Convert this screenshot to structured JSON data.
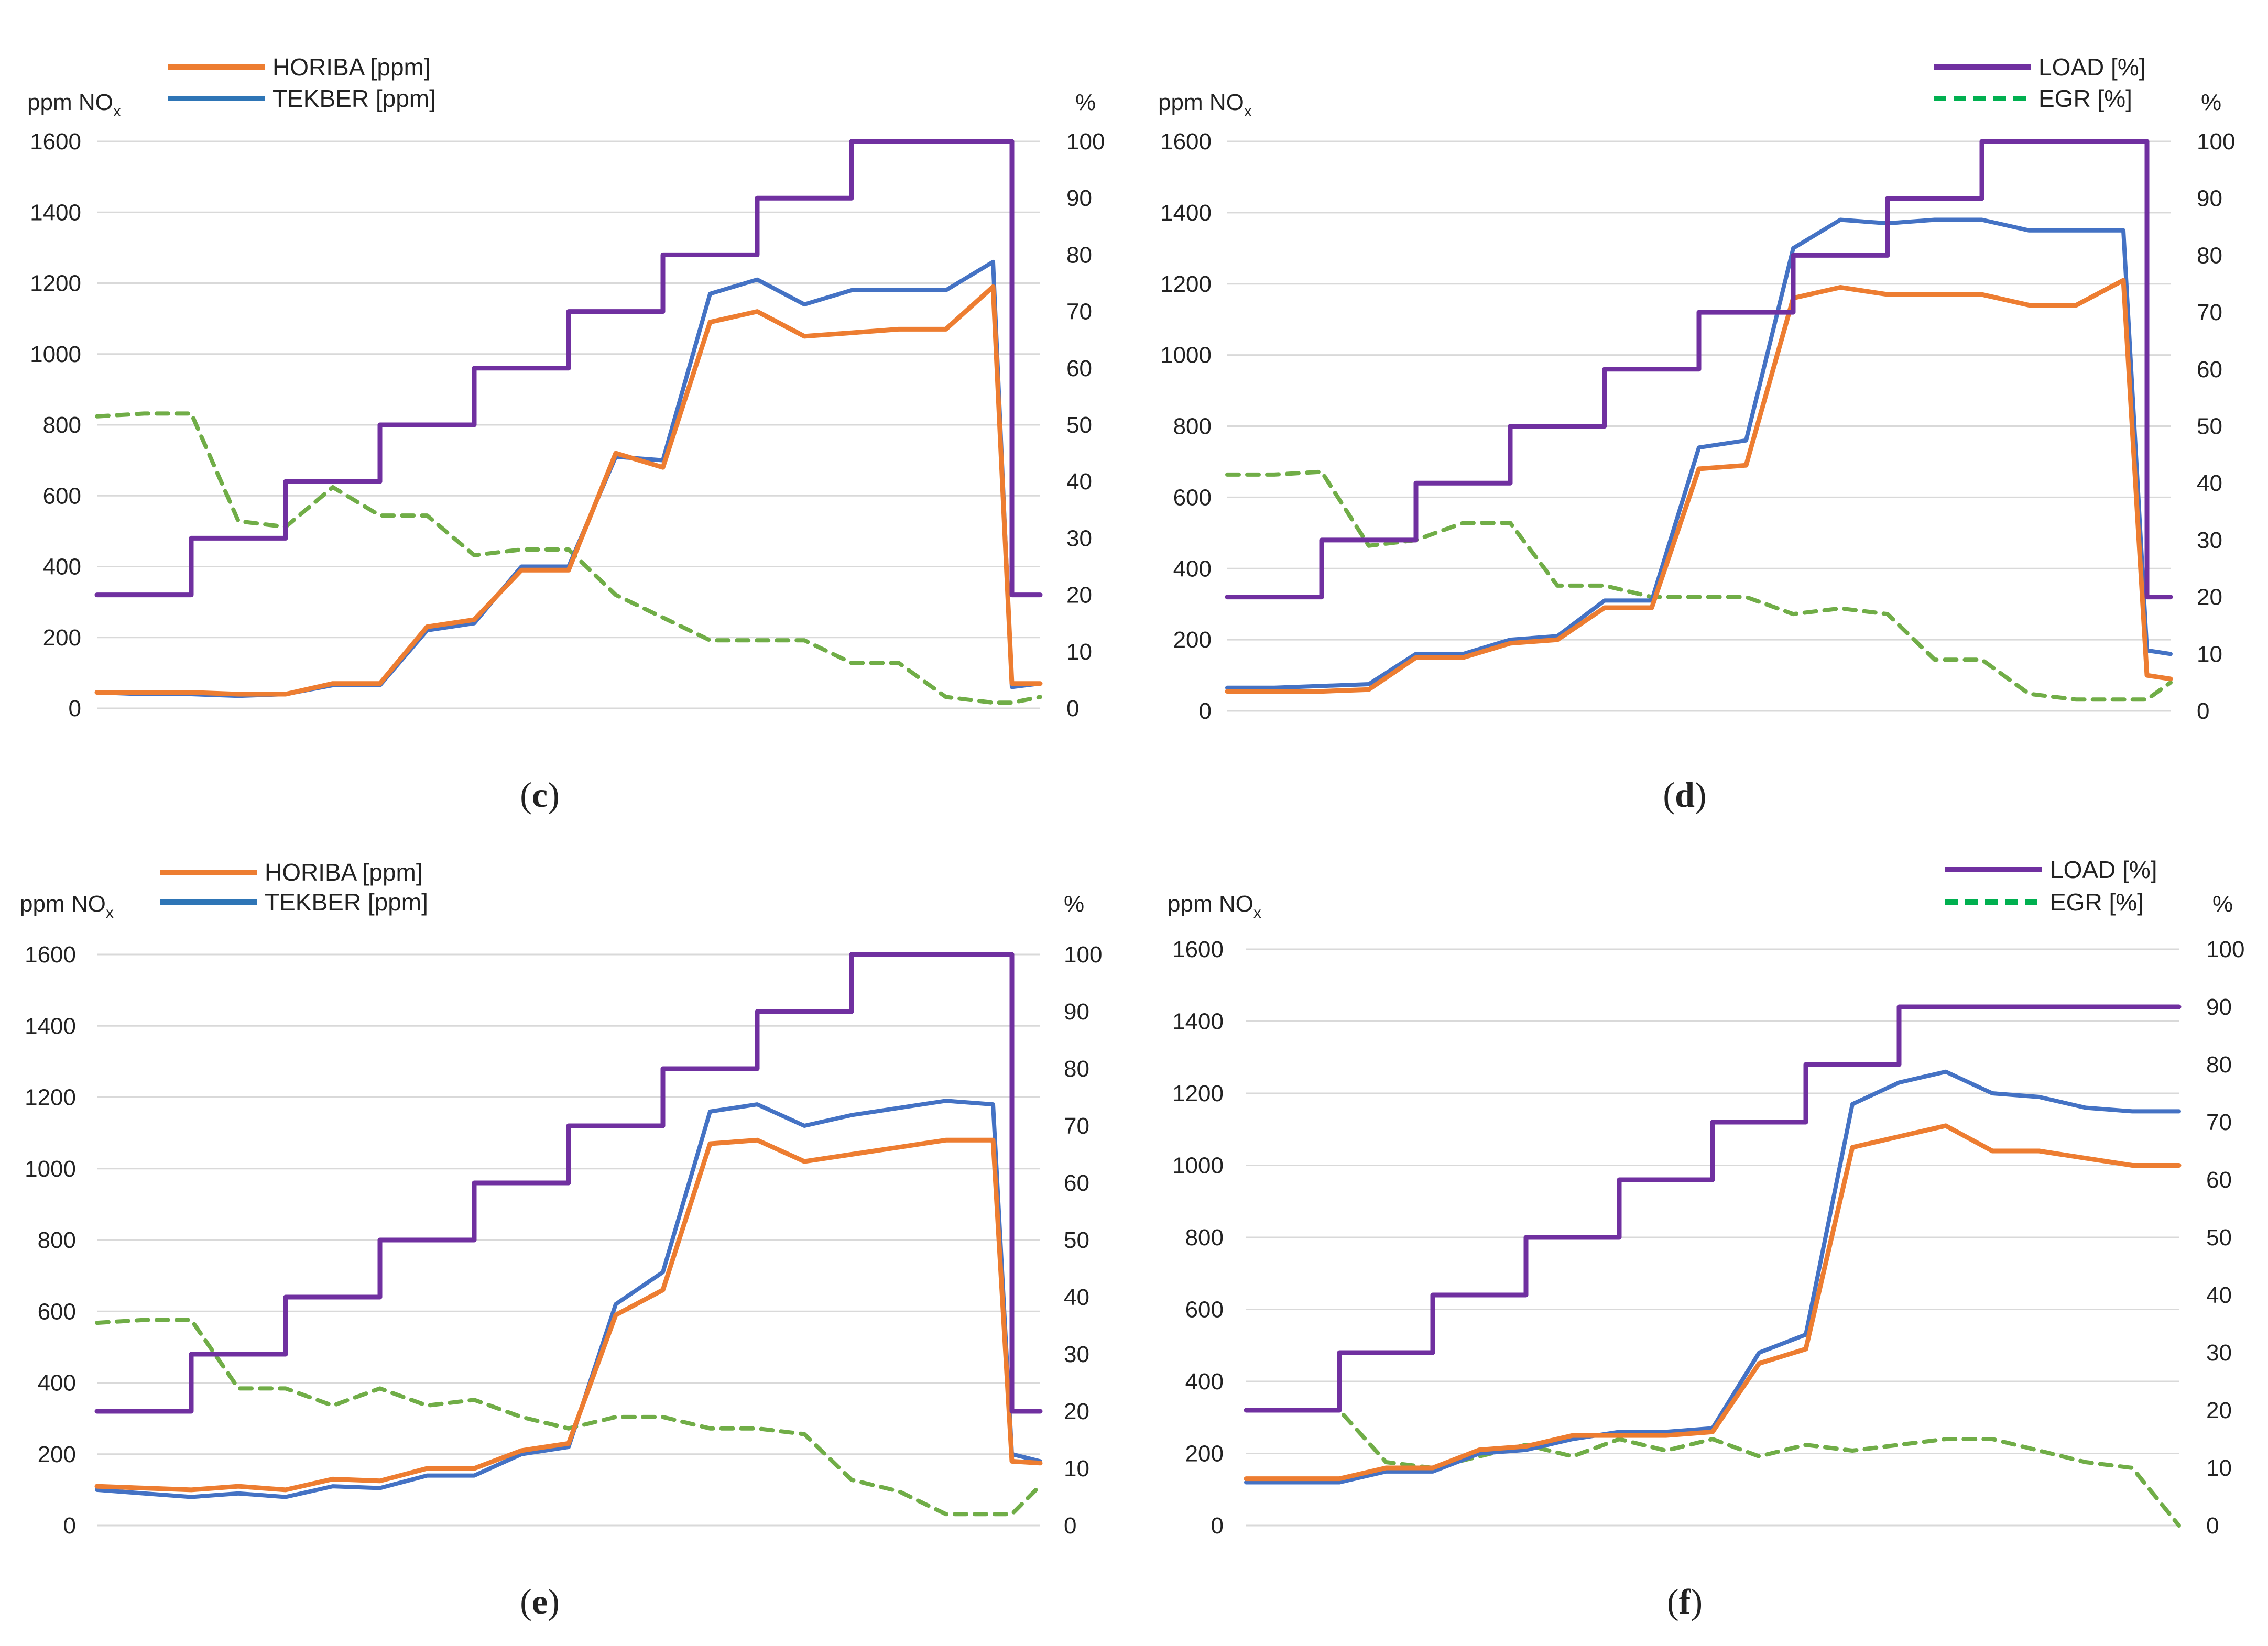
{
  "colors": {
    "horiba": "#ED7D31",
    "tekber": "#4472C4",
    "load": "#7030A0",
    "egr": "#70AD47",
    "grid": "#D9D9D9",
    "legend_horiba": "#ED7D31",
    "legend_tekber": "#2E75B6",
    "legend_load": "#7030A0",
    "legend_egr": "#00B050"
  },
  "chart_data": [
    {
      "type": "line",
      "panel_label": "c",
      "left_axis_label": "ppm NO",
      "left_axis_label_sub": "x",
      "right_axis_label": "%",
      "ylim_left": [
        0,
        1600
      ],
      "ylim_right": [
        0,
        100
      ],
      "left_ticks": [
        "0",
        "200",
        "400",
        "600",
        "800",
        "1000",
        "1200",
        "1400",
        "1600"
      ],
      "right_ticks": [
        "0",
        "10",
        "20",
        "30",
        "40",
        "50",
        "60",
        "70",
        "80",
        "90",
        "100"
      ],
      "grid": true,
      "legend": [
        {
          "label": "HORIBA [ppm]",
          "series": "horiba"
        },
        {
          "label": "TEKBER [ppm]",
          "series": "tekber"
        }
      ],
      "x": [
        0,
        0.5,
        1,
        1.5,
        2,
        2.5,
        3,
        3.5,
        4,
        4.5,
        5,
        5.5,
        6,
        6.5,
        7,
        7.5,
        8,
        8.5,
        9,
        9.5,
        9.7,
        10
      ],
      "series": {
        "horiba": [
          45,
          45,
          45,
          40,
          40,
          70,
          70,
          230,
          250,
          390,
          390,
          720,
          680,
          1090,
          1120,
          1050,
          1060,
          1070,
          1070,
          1190,
          70,
          70
        ],
        "tekber": [
          45,
          40,
          40,
          35,
          40,
          65,
          65,
          220,
          240,
          400,
          400,
          710,
          700,
          1170,
          1210,
          1140,
          1180,
          1180,
          1180,
          1260,
          60,
          70
        ],
        "load": [
          20,
          20,
          30,
          30,
          40,
          40,
          50,
          50,
          60,
          60,
          70,
          70,
          80,
          80,
          90,
          90,
          100,
          100,
          100,
          100,
          20,
          20
        ],
        "egr": [
          51.5,
          52,
          52,
          33,
          32,
          39,
          34,
          34,
          27,
          28,
          28,
          20,
          16,
          12,
          12,
          12,
          8,
          8,
          2,
          1,
          1,
          2
        ]
      }
    },
    {
      "type": "line",
      "panel_label": "d",
      "left_axis_label": "ppm NO",
      "left_axis_label_sub": "x",
      "right_axis_label": "%",
      "ylim_left": [
        0,
        1600
      ],
      "ylim_right": [
        0,
        100
      ],
      "left_ticks": [
        "0",
        "200",
        "400",
        "600",
        "800",
        "1000",
        "1200",
        "1400",
        "1600"
      ],
      "right_ticks": [
        "0",
        "10",
        "20",
        "30",
        "40",
        "50",
        "60",
        "70",
        "80",
        "90",
        "100"
      ],
      "grid": true,
      "legend": [
        {
          "label": "LOAD [%]",
          "series": "load"
        },
        {
          "label": "EGR [%]",
          "series": "egr"
        }
      ],
      "x": [
        0,
        0.5,
        1,
        1.5,
        2,
        2.5,
        3,
        3.5,
        4,
        4.5,
        5,
        5.5,
        6,
        6.5,
        7,
        7.5,
        8,
        8.5,
        9,
        9.5,
        9.75,
        10
      ],
      "series": {
        "horiba": [
          55,
          55,
          55,
          60,
          150,
          150,
          190,
          200,
          290,
          290,
          680,
          690,
          1160,
          1190,
          1170,
          1170,
          1170,
          1140,
          1140,
          1210,
          100,
          90
        ],
        "tekber": [
          65,
          65,
          70,
          75,
          160,
          160,
          200,
          210,
          310,
          310,
          740,
          760,
          1300,
          1380,
          1370,
          1380,
          1380,
          1350,
          1350,
          1350,
          170,
          160
        ],
        "load": [
          20,
          20,
          30,
          30,
          40,
          40,
          50,
          50,
          60,
          60,
          70,
          70,
          80,
          80,
          90,
          90,
          100,
          100,
          100,
          100,
          20,
          20
        ],
        "egr": [
          41.5,
          41.5,
          42,
          29,
          30,
          33,
          33,
          22,
          22,
          20,
          20,
          20,
          17,
          18,
          17,
          9,
          9,
          3,
          2,
          2,
          2,
          5
        ]
      }
    },
    {
      "type": "line",
      "panel_label": "e",
      "left_axis_label": "ppm NO",
      "left_axis_label_sub": "x",
      "right_axis_label": "%",
      "ylim_left": [
        0,
        1600
      ],
      "ylim_right": [
        0,
        100
      ],
      "left_ticks": [
        "0",
        "200",
        "400",
        "600",
        "800",
        "1000",
        "1200",
        "1400",
        "1600"
      ],
      "right_ticks": [
        "0",
        "10",
        "20",
        "30",
        "40",
        "50",
        "60",
        "70",
        "80",
        "90",
        "100"
      ],
      "grid": true,
      "legend": [
        {
          "label": "HORIBA [ppm]",
          "series": "horiba"
        },
        {
          "label": "TEKBER [ppm]",
          "series": "tekber"
        }
      ],
      "x": [
        0,
        0.5,
        1,
        1.5,
        2,
        2.5,
        3,
        3.5,
        4,
        4.5,
        5,
        5.5,
        6,
        6.5,
        7,
        7.5,
        8,
        8.5,
        9,
        9.5,
        9.7,
        10
      ],
      "series": {
        "horiba": [
          110,
          105,
          100,
          110,
          100,
          130,
          125,
          160,
          160,
          210,
          230,
          590,
          660,
          1070,
          1080,
          1020,
          1040,
          1060,
          1080,
          1080,
          180,
          175
        ],
        "tekber": [
          100,
          90,
          80,
          90,
          80,
          110,
          105,
          140,
          140,
          200,
          220,
          620,
          710,
          1160,
          1180,
          1120,
          1150,
          1170,
          1190,
          1180,
          200,
          180
        ],
        "load": [
          20,
          20,
          30,
          30,
          40,
          40,
          50,
          50,
          60,
          60,
          70,
          70,
          80,
          80,
          90,
          90,
          100,
          100,
          100,
          100,
          20,
          20
        ],
        "egr": [
          35.5,
          36,
          36,
          24,
          24,
          21,
          24,
          21,
          22,
          19,
          17,
          19,
          19,
          17,
          17,
          16,
          8,
          6,
          2,
          2,
          2,
          7
        ]
      }
    },
    {
      "type": "line",
      "panel_label": "f",
      "left_axis_label": "ppm NO",
      "left_axis_label_sub": "x",
      "right_axis_label": "%",
      "ylim_left": [
        0,
        1600
      ],
      "ylim_right": [
        0,
        100
      ],
      "left_ticks": [
        "0",
        "200",
        "400",
        "600",
        "800",
        "1000",
        "1200",
        "1400",
        "1600"
      ],
      "right_ticks": [
        "0",
        "10",
        "20",
        "30",
        "40",
        "50",
        "60",
        "70",
        "80",
        "90",
        "100"
      ],
      "grid": true,
      "legend": [
        {
          "label": "LOAD [%]",
          "series": "load"
        },
        {
          "label": "EGR [%]",
          "series": "egr"
        }
      ],
      "x": [
        0,
        0.5,
        1,
        1.5,
        2,
        2.5,
        3,
        3.5,
        4,
        4.5,
        5,
        5.5,
        6,
        6.5,
        7,
        7.5,
        8,
        8.5,
        9,
        9.5,
        10
      ],
      "series": {
        "horiba": [
          130,
          130,
          130,
          160,
          160,
          210,
          220,
          250,
          250,
          250,
          260,
          450,
          490,
          1050,
          1080,
          1110,
          1040,
          1040,
          1020,
          1000,
          1000
        ],
        "tekber": [
          120,
          120,
          120,
          150,
          150,
          200,
          210,
          240,
          260,
          260,
          270,
          480,
          530,
          1170,
          1230,
          1260,
          1200,
          1190,
          1160,
          1150,
          1150
        ],
        "load": [
          20,
          20,
          30,
          30,
          40,
          40,
          50,
          50,
          60,
          60,
          70,
          70,
          80,
          80,
          90,
          90,
          90,
          90,
          90,
          90,
          90
        ],
        "egr": [
          20,
          20,
          20,
          11,
          10,
          12,
          14,
          12,
          15,
          13,
          15,
          12,
          14,
          13,
          14,
          15,
          15,
          13,
          11,
          10,
          0
        ]
      }
    }
  ]
}
